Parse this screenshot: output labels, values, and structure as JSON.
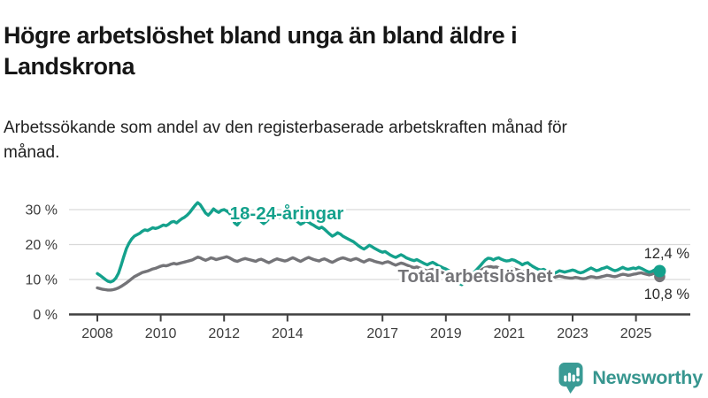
{
  "chart_data": {
    "type": "line",
    "title": "Högre arbetslöshet bland unga än bland äldre i Landskrona",
    "subtitle": "Arbetssökande som andel av den registerbaserade arbetskraften månad för månad.",
    "unit": "%",
    "frequency": "monthly",
    "x_axis": {
      "start_year": 2008,
      "start_month": 1,
      "ticks": [
        {
          "year": 2008,
          "label": "2008"
        },
        {
          "year": 2010,
          "label": "2010"
        },
        {
          "year": 2012,
          "label": "2012"
        },
        {
          "year": 2014,
          "label": "2014"
        },
        {
          "year": 2017,
          "label": "2017"
        },
        {
          "year": 2019,
          "label": "2019"
        },
        {
          "year": 2021,
          "label": "2021"
        },
        {
          "year": 2023,
          "label": "2023"
        },
        {
          "year": 2025,
          "label": "2025"
        }
      ]
    },
    "y_axis": {
      "min": 0,
      "max": 33,
      "grid": true,
      "ticks": [
        {
          "value": 0,
          "label": "0 %"
        },
        {
          "value": 10,
          "label": "10 %"
        },
        {
          "value": 20,
          "label": "20 %"
        },
        {
          "value": 30,
          "label": "30 %"
        }
      ]
    },
    "style": {
      "grid_color": "#d9d9d9",
      "axis_color": "#404040",
      "tick_text_color": "#3c3c3c",
      "value_label_color": "#2a2a2a",
      "background": "#ffffff"
    },
    "series": [
      {
        "id": "youth",
        "name": "18-24-åringar",
        "color": "#14a18c",
        "end_value": 12.4,
        "end_label": "12,4 %",
        "label_x": 324,
        "label_y": 248,
        "end_label_y": 292,
        "values": [
          11.7,
          11.2,
          10.6,
          10.0,
          9.5,
          9.3,
          9.6,
          10.4,
          11.8,
          14.0,
          16.5,
          18.8,
          20.4,
          21.6,
          22.4,
          22.8,
          23.2,
          23.8,
          24.2,
          24.0,
          24.4,
          24.8,
          24.6,
          24.8,
          25.2,
          25.6,
          25.4,
          25.8,
          26.4,
          26.6,
          26.2,
          26.8,
          27.4,
          27.8,
          28.4,
          29.2,
          30.2,
          31.2,
          32.0,
          31.4,
          30.2,
          29.0,
          28.4,
          29.2,
          30.2,
          29.6,
          29.2,
          29.8,
          30.0,
          29.6,
          29.0,
          27.8,
          26.2,
          25.6,
          26.6,
          28.0,
          29.0,
          29.4,
          29.2,
          28.8,
          28.4,
          27.6,
          26.6,
          26.0,
          26.6,
          27.4,
          28.2,
          28.6,
          28.2,
          27.8,
          28.0,
          27.6,
          27.2,
          27.6,
          27.9,
          27.2,
          26.4,
          25.8,
          26.2,
          26.8,
          26.4,
          25.9,
          25.5,
          25.0,
          24.6,
          25.0,
          24.4,
          23.7,
          23.0,
          22.4,
          22.8,
          23.4,
          23.0,
          22.4,
          22.0,
          21.6,
          21.2,
          20.8,
          20.2,
          19.6,
          19.1,
          18.7,
          19.2,
          19.8,
          19.4,
          18.9,
          18.5,
          18.1,
          17.8,
          18.0,
          17.5,
          17.0,
          16.6,
          16.3,
          16.7,
          17.1,
          16.7,
          16.2,
          15.9,
          15.6,
          15.4,
          15.7,
          15.3,
          14.9,
          14.5,
          14.2,
          14.6,
          14.9,
          14.5,
          14.0,
          13.7,
          13.3,
          13.0,
          12.6,
          12.1,
          11.4,
          10.4,
          8.9,
          8.5,
          9.4,
          10.4,
          11.1,
          11.7,
          12.3,
          13.1,
          13.9,
          14.8,
          15.6,
          16.1,
          16.0,
          15.6,
          16.0,
          16.2,
          15.8,
          15.5,
          15.3,
          15.4,
          15.7,
          15.5,
          15.1,
          14.7,
          14.2,
          14.6,
          14.8,
          14.2,
          13.7,
          13.3,
          12.9,
          12.7,
          12.9,
          12.5,
          12.1,
          11.9,
          11.7,
          12.1,
          12.5,
          12.3,
          12.1,
          12.3,
          12.5,
          12.7,
          12.5,
          12.1,
          11.9,
          12.1,
          12.5,
          12.9,
          13.3,
          12.9,
          12.5,
          12.7,
          13.1,
          13.3,
          13.6,
          13.2,
          12.8,
          12.5,
          12.7,
          13.1,
          13.5,
          13.1,
          12.9,
          13.1,
          13.3,
          13.1,
          13.5,
          13.2,
          12.8,
          12.4,
          12.1,
          12.3,
          12.7,
          12.9,
          12.4
        ]
      },
      {
        "id": "total",
        "name": "Total arbetslöshet",
        "color": "#747478",
        "end_value": 10.8,
        "end_label": "10,8 %",
        "label_x": 537,
        "label_y": 319,
        "end_label_y": 338,
        "values": [
          7.6,
          7.4,
          7.2,
          7.1,
          7.0,
          7.0,
          7.1,
          7.3,
          7.6,
          8.0,
          8.5,
          9.0,
          9.6,
          10.2,
          10.8,
          11.2,
          11.6,
          12.0,
          12.2,
          12.4,
          12.7,
          13.0,
          13.2,
          13.5,
          13.8,
          14.0,
          13.9,
          14.1,
          14.4,
          14.6,
          14.4,
          14.6,
          14.8,
          15.0,
          15.2,
          15.4,
          15.6,
          16.0,
          16.4,
          16.2,
          15.8,
          15.5,
          15.8,
          16.2,
          16.0,
          15.7,
          15.9,
          16.1,
          16.3,
          16.5,
          16.2,
          15.8,
          15.4,
          15.2,
          15.5,
          15.8,
          16.0,
          15.8,
          15.6,
          15.4,
          15.2,
          15.6,
          15.8,
          15.5,
          15.1,
          14.8,
          15.2,
          15.6,
          15.9,
          15.7,
          15.5,
          15.3,
          15.5,
          15.9,
          16.2,
          15.9,
          15.5,
          15.2,
          15.6,
          16.0,
          16.3,
          16.0,
          15.7,
          15.5,
          15.3,
          15.7,
          15.9,
          15.6,
          15.2,
          14.9,
          15.3,
          15.7,
          16.0,
          16.2,
          16.0,
          15.7,
          15.5,
          15.8,
          16.0,
          15.7,
          15.3,
          15.0,
          15.4,
          15.7,
          15.5,
          15.2,
          15.0,
          14.8,
          14.6,
          14.9,
          15.1,
          14.8,
          14.4,
          14.1,
          14.4,
          14.7,
          14.5,
          14.2,
          13.9,
          13.6,
          13.4,
          13.6,
          13.3,
          13.0,
          12.7,
          12.4,
          12.7,
          12.9,
          12.6,
          12.3,
          12.1,
          11.9,
          11.8,
          11.9,
          11.7,
          11.4,
          11.2,
          11.0,
          11.3,
          11.5,
          11.3,
          11.2,
          11.4,
          11.6,
          12.0,
          12.5,
          13.0,
          13.4,
          13.6,
          13.7,
          13.5,
          13.6,
          13.4,
          13.2,
          13.0,
          12.9,
          13.0,
          13.2,
          13.0,
          12.8,
          12.5,
          12.2,
          12.4,
          12.5,
          12.2,
          11.9,
          11.7,
          11.5,
          11.4,
          11.5,
          11.3,
          11.0,
          10.8,
          10.6,
          10.8,
          11.0,
          10.8,
          10.6,
          10.5,
          10.4,
          10.4,
          10.6,
          10.5,
          10.3,
          10.2,
          10.3,
          10.6,
          10.8,
          10.7,
          10.5,
          10.6,
          10.8,
          11.0,
          11.2,
          11.1,
          10.9,
          10.8,
          11.0,
          11.3,
          11.5,
          11.4,
          11.2,
          11.3,
          11.5,
          11.6,
          11.8,
          11.9,
          11.7,
          11.5,
          11.3,
          11.5,
          11.8,
          11.4,
          10.8
        ]
      }
    ]
  },
  "footer": {
    "brand": "Newsworthy",
    "brand_color": "#37968f",
    "logo_icon": "bar-chart-speech-bubble"
  }
}
